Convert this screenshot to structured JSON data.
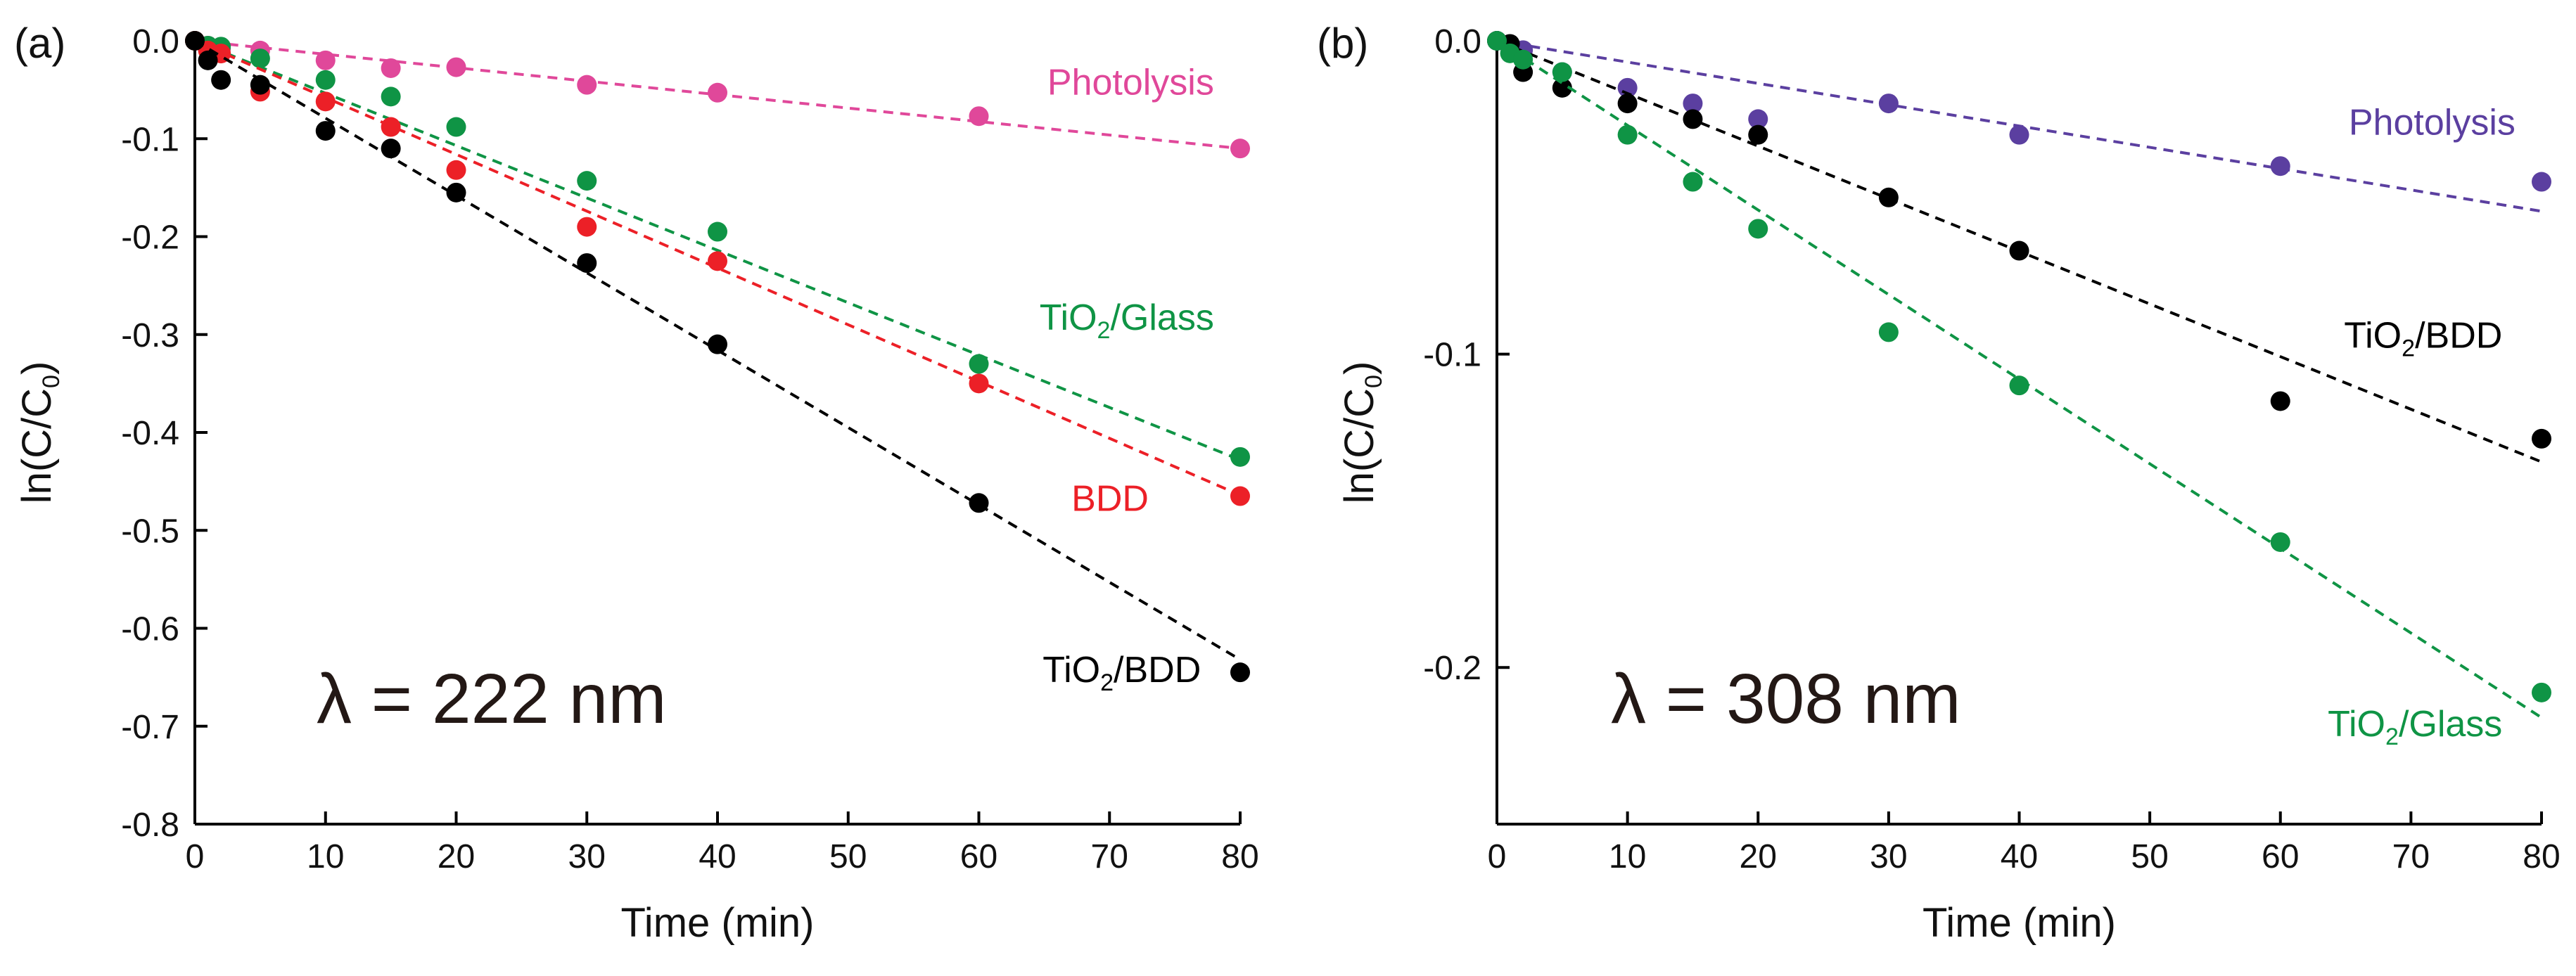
{
  "chart_data": [
    {
      "type": "scatter",
      "panel": "(a)",
      "annotation": "λ = 222 nm",
      "xlabel": "Time (min)",
      "ylabel_main": "ln(C/C",
      "ylabel_sub": "0",
      "ylabel_tail": ")",
      "xlim": [
        0,
        80
      ],
      "ylim": [
        -0.8,
        0.0
      ],
      "xticks": [
        0,
        10,
        20,
        30,
        40,
        50,
        60,
        70,
        80
      ],
      "yticks": [
        0.0,
        -0.1,
        -0.2,
        -0.3,
        -0.4,
        -0.5,
        -0.6,
        -0.7,
        -0.8
      ],
      "ytick_labels": [
        "0.0",
        "-0.1",
        "-0.2",
        "-0.3",
        "-0.4",
        "-0.5",
        "-0.6",
        "-0.7",
        "-0.8"
      ],
      "series": [
        {
          "name": "Photolysis",
          "label_main": "Photolysis",
          "label_sub": "",
          "label_tail": "",
          "color": "#e0489a",
          "x": [
            0,
            1,
            2,
            5,
            10,
            15,
            20,
            30,
            40,
            60,
            80
          ],
          "y": [
            0.0,
            -0.005,
            -0.008,
            -0.01,
            -0.02,
            -0.028,
            -0.027,
            -0.045,
            -0.053,
            -0.077,
            -0.11
          ],
          "fit_slope": -0.001375,
          "label_anchor": [
            78,
            -0.055
          ]
        },
        {
          "name": "TiO2/Glass",
          "label_main": "TiO",
          "label_sub": "2",
          "label_tail": "/Glass",
          "color": "#0f9445",
          "x": [
            0,
            1,
            2,
            5,
            10,
            15,
            20,
            30,
            40,
            60,
            80
          ],
          "y": [
            0.0,
            -0.005,
            -0.006,
            -0.018,
            -0.04,
            -0.057,
            -0.088,
            -0.143,
            -0.195,
            -0.33,
            -0.425
          ],
          "fit_slope": -0.00535,
          "label_anchor": [
            78,
            -0.295
          ]
        },
        {
          "name": "BDD",
          "label_main": "BDD",
          "label_sub": "",
          "label_tail": "",
          "color": "#ec2027",
          "x": [
            0,
            1,
            2,
            5,
            10,
            15,
            20,
            30,
            40,
            60,
            80
          ],
          "y": [
            0.0,
            -0.01,
            -0.013,
            -0.052,
            -0.062,
            -0.088,
            -0.132,
            -0.19,
            -0.225,
            -0.35,
            -0.465
          ],
          "fit_slope": -0.0058,
          "label_anchor": [
            73,
            -0.48
          ]
        },
        {
          "name": "TiO2/BDD",
          "label_main": "TiO",
          "label_sub": "2",
          "label_tail": "/BDD",
          "color": "#000000",
          "x": [
            0,
            1,
            2,
            5,
            10,
            15,
            20,
            30,
            40,
            60,
            80
          ],
          "y": [
            0.0,
            -0.02,
            -0.04,
            -0.045,
            -0.092,
            -0.11,
            -0.155,
            -0.227,
            -0.31,
            -0.472,
            -0.645
          ],
          "fit_slope": -0.0079,
          "label_anchor": [
            77,
            -0.655
          ]
        }
      ]
    },
    {
      "type": "scatter",
      "panel": "(b)",
      "annotation": "λ = 308 nm",
      "xlabel": "Time (min)",
      "ylabel_main": "ln(C/C",
      "ylabel_sub": "0",
      "ylabel_tail": ")",
      "xlim": [
        0,
        80
      ],
      "ylim": [
        -0.25,
        0.0
      ],
      "xticks": [
        0,
        10,
        20,
        30,
        40,
        50,
        60,
        70,
        80
      ],
      "yticks": [
        0.0,
        -0.1,
        -0.2
      ],
      "ytick_labels": [
        "0.0",
        "-0.1",
        "-0.2"
      ],
      "series": [
        {
          "name": "Photolysis",
          "label_main": "Photolysis",
          "label_sub": "",
          "label_tail": "",
          "color": "#5b3fa0",
          "x": [
            0,
            1,
            2,
            5,
            10,
            15,
            20,
            30,
            40,
            60,
            80
          ],
          "y": [
            0.0,
            -0.002,
            -0.003,
            -0.01,
            -0.015,
            -0.02,
            -0.025,
            -0.02,
            -0.03,
            -0.04,
            -0.045
          ],
          "fit_slope": -0.00068,
          "label_anchor": [
            78,
            -0.03
          ]
        },
        {
          "name": "TiO2/BDD",
          "label_main": "TiO",
          "label_sub": "2",
          "label_tail": "/BDD",
          "color": "#000000",
          "x": [
            0,
            1,
            2,
            5,
            10,
            15,
            20,
            30,
            40,
            60,
            80
          ],
          "y": [
            0.0,
            -0.001,
            -0.01,
            -0.015,
            -0.02,
            -0.025,
            -0.03,
            -0.05,
            -0.067,
            -0.115,
            -0.127
          ],
          "fit_slope": -0.00168,
          "label_anchor": [
            77,
            -0.098
          ]
        },
        {
          "name": "TiO2/Glass",
          "label_main": "TiO",
          "label_sub": "2",
          "label_tail": "/Glass",
          "color": "#0f9445",
          "x": [
            0,
            1,
            2,
            5,
            10,
            15,
            20,
            30,
            40,
            60,
            80
          ],
          "y": [
            0.0,
            -0.004,
            -0.006,
            -0.01,
            -0.03,
            -0.045,
            -0.06,
            -0.093,
            -0.11,
            -0.16,
            -0.208
          ],
          "fit_slope": -0.0027,
          "label_anchor": [
            77,
            -0.222
          ]
        }
      ]
    }
  ]
}
